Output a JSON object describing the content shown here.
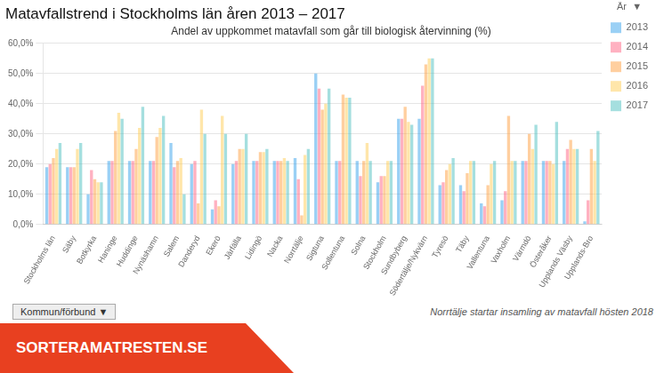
{
  "chart_data": {
    "type": "bar",
    "title": "Matavfallstrend i Stockholms län åren 2013 – 2017",
    "subtitle": "Andel av uppkommet matavfall som går till biologisk återvinning (%)",
    "categories": [
      "Stockholms län",
      "Säby",
      "Botkyrka",
      "Haninge",
      "Huddinge",
      "Nynäshamn",
      "Salem",
      "Danderyd",
      "Ekerö",
      "Järfälla",
      "Lidingö",
      "Nacka",
      "Norrtälje",
      "Sigtuna",
      "Sollentuna",
      "Solna",
      "Stockholm",
      "Sundbyberg",
      "Södertälje/Nykvärn",
      "Tyresö",
      "Täby",
      "Vallentuna",
      "Vaxholm",
      "Värmdö",
      "Österåker",
      "Upplands Väsby",
      "Upplands-Bro"
    ],
    "series": [
      {
        "name": "2013",
        "values": [
          19,
          19,
          10,
          21,
          21,
          21,
          27,
          20,
          5,
          20,
          21,
          21,
          22,
          50,
          21,
          21,
          14,
          35,
          35,
          13,
          13,
          7,
          8,
          21,
          21,
          21,
          1
        ]
      },
      {
        "name": "2014",
        "values": [
          20,
          19,
          18,
          21,
          21,
          21,
          19,
          21,
          8,
          21,
          21,
          21,
          15,
          45,
          21,
          16,
          16,
          35,
          46,
          14,
          11,
          6,
          11,
          21,
          21,
          25,
          8
        ]
      },
      {
        "name": "2015",
        "values": [
          22,
          19,
          15,
          31,
          25,
          29,
          21,
          7,
          6,
          25,
          24,
          21,
          3,
          38,
          43,
          21,
          16,
          39,
          53,
          18,
          17,
          13,
          36,
          30,
          21,
          28,
          25
        ]
      },
      {
        "name": "2016",
        "values": [
          25,
          25,
          14,
          37,
          32,
          32,
          22,
          38,
          36,
          25,
          24,
          22,
          23,
          40,
          42,
          27,
          21,
          34,
          55,
          20,
          21,
          20,
          21,
          25,
          20,
          25,
          21
        ]
      },
      {
        "name": "2017",
        "values": [
          27,
          27,
          14,
          35,
          39,
          36,
          10,
          30,
          30,
          30,
          25,
          21,
          25,
          45,
          42,
          21,
          21,
          33,
          55,
          22,
          21,
          21,
          21,
          33,
          34,
          25,
          31
        ]
      }
    ],
    "ylim": [
      0,
      60
    ],
    "yticks": [
      {
        "value": 0,
        "label": "0,0%"
      },
      {
        "value": 10,
        "label": "10,0%"
      },
      {
        "value": 20,
        "label": "20,0%"
      },
      {
        "value": 30,
        "label": "30,0%"
      },
      {
        "value": 40,
        "label": "40,0%"
      },
      {
        "value": 50,
        "label": "50,0%"
      },
      {
        "value": 60,
        "label": "60,0%"
      }
    ],
    "grid": true,
    "legend": "right",
    "legend_title": "År  ▼",
    "annotations": [
      "Kommun/förbund  ▼",
      "Norrtälje startar insamling av matavfall hösten 2018",
      "SORTERAMATRESTEN.SE"
    ]
  }
}
